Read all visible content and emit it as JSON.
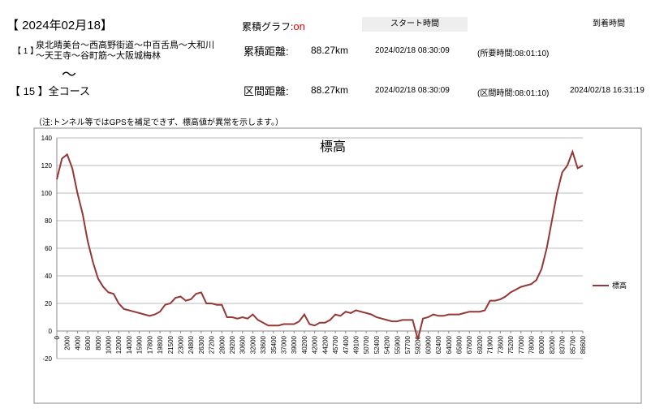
{
  "header": {
    "date": "【 2024年02月18】",
    "graph_label": "累積グラフ:",
    "graph_state": "on",
    "start_button": "スタート時間",
    "arrival_button": "到着時間"
  },
  "route": {
    "index": "【 1 】",
    "line1": "泉北晴美台～西高野街道～中百舌鳥～大和川",
    "line2": "～天王寺～谷町筋～大阪城梅林",
    "distance_label": "累積距離:",
    "distance": "88.27km",
    "start": "2024/02/18 08:30:09",
    "duration": "(所要時間:08:01:10)"
  },
  "tilde": "～",
  "section": {
    "name": "【 15 】全コース",
    "distance_label": "区間距離:",
    "distance": "88.27km",
    "start": "2024/02/18 08:30:09",
    "duration": "(区間時間:08:01:10)",
    "arrival": "2024/02/18 16:31:19"
  },
  "note": "（注:トンネル等ではGPSを補足できず、標高値が異常を示します。）",
  "chart_data": {
    "type": "line",
    "title": "標高",
    "categories": [
      "0",
      null,
      "2000",
      null,
      "4000",
      null,
      "6000",
      null,
      "8000",
      null,
      "10000",
      null,
      "12000",
      null,
      "14000",
      null,
      "15900",
      null,
      "17800",
      null,
      "19800",
      null,
      "21500",
      null,
      "23000",
      null,
      "24800",
      null,
      "26300",
      null,
      "27200",
      null,
      "28000",
      null,
      "29200",
      null,
      "30600",
      null,
      "32000",
      null,
      "33600",
      null,
      "35400",
      null,
      "37000",
      null,
      "39000",
      null,
      "40200",
      null,
      "42000",
      null,
      "44200",
      null,
      "45700",
      null,
      "47400",
      null,
      "49100",
      null,
      "50700",
      null,
      "52400",
      null,
      "54200",
      null,
      "55900",
      null,
      "57700",
      null,
      "59200",
      null,
      "60900",
      null,
      "62400",
      null,
      "64000",
      null,
      "65800",
      null,
      "67600",
      null,
      "69200",
      null,
      "71900",
      null,
      "73600",
      null,
      "75200",
      null,
      "77000",
      null,
      "78000",
      null,
      "80000",
      null,
      "82000",
      null,
      "83700",
      null,
      "85700",
      null,
      "86600"
    ],
    "series": [
      {
        "name": "標高",
        "color": "#953735",
        "values": [
          110,
          125,
          128,
          118,
          100,
          85,
          65,
          50,
          38,
          32,
          28,
          27,
          20,
          16,
          15,
          14,
          13,
          12,
          11,
          12,
          14,
          19,
          20,
          24,
          25,
          22,
          23,
          27,
          28,
          20,
          20,
          19,
          19,
          10,
          10,
          9,
          10,
          9,
          12,
          8,
          6,
          4,
          4,
          4,
          5,
          5,
          5,
          7,
          12,
          5,
          4,
          6,
          6,
          8,
          12,
          11,
          14,
          13,
          15,
          14,
          13,
          12,
          10,
          9,
          8,
          7,
          7,
          8,
          8,
          8,
          -6,
          9,
          10,
          12,
          11,
          11,
          12,
          12,
          12,
          13,
          14,
          14,
          14,
          15,
          22,
          22,
          23,
          25,
          28,
          30,
          32,
          33,
          34,
          37,
          45,
          60,
          80,
          100,
          115,
          120,
          130,
          118,
          120
        ]
      }
    ],
    "ylim": [
      -20,
      140
    ],
    "yticks": [
      -20,
      0,
      20,
      40,
      60,
      80,
      100,
      120,
      140
    ],
    "grid": true,
    "legend": "right"
  }
}
